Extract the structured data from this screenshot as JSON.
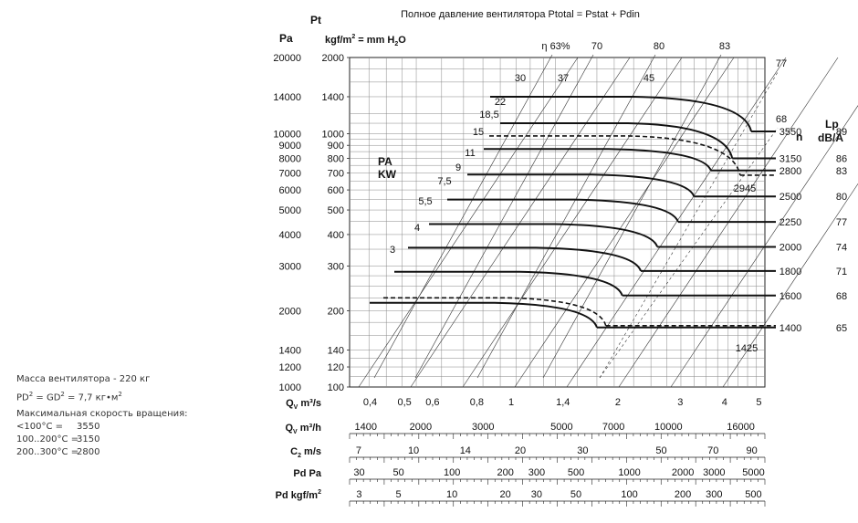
{
  "title": "Полное давление вентилятора Ptotal = Pstat + Pdin",
  "info": {
    "mass": "Масса вентилятора - 220 кг",
    "pd2_prefix": "PD",
    "pd2_mid": " = GD",
    "pd2_suffix": " = 7,7 кг•м",
    "sup": "2",
    "max_speed": "Максимальная скорость вращения:",
    "ranges": [
      {
        "t": "<100°C =",
        "v": "3550"
      },
      {
        "t": "100..200°C =",
        "v": "3150"
      },
      {
        "t": "200..300°C =",
        "v": "2800"
      }
    ]
  },
  "chart_data": {
    "type": "line",
    "axes_labels": {
      "pt": "Pt",
      "pa": "Pa",
      "kgf_prefix": "kgf/m",
      "kgf_mid": " = mm H",
      "kgf_suffix": "O",
      "sup2": "2",
      "sub2": "2",
      "n": "n",
      "lp": "Lp",
      "dba": "dB/A",
      "pa_kw_1": "PA",
      "pa_kw_2": "KW",
      "eff_prefix": "η 63%"
    },
    "pa_scale": {
      "ylim": [
        1000,
        20000
      ],
      "ticks": [
        1000,
        1200,
        1400,
        2000,
        3000,
        4000,
        5000,
        6000,
        7000,
        8000,
        9000,
        10000,
        14000,
        20000
      ],
      "labels": [
        "1000",
        "1200",
        "1400",
        "2000",
        "3000",
        "4000",
        "5000",
        "6000",
        "7000",
        "8000",
        "9000",
        "10000",
        "14000",
        "20000"
      ]
    },
    "kgf_scale": {
      "ticks": [
        100,
        120,
        140,
        200,
        300,
        400,
        500,
        600,
        700,
        800,
        900,
        1000,
        1400,
        2000
      ],
      "labels": [
        "100",
        "120",
        "140",
        "200",
        "300",
        "400",
        "500",
        "600",
        "700",
        "800",
        "900",
        "1000",
        "1400",
        "2000"
      ]
    },
    "bottom_axes": [
      {
        "label_main": "Q",
        "label_sub": "V",
        "label_rest": " m³/s",
        "min": 0.35,
        "max": 5.2,
        "ticks": [
          0.4,
          0.5,
          0.6,
          0.8,
          1,
          1.4,
          2,
          3,
          4,
          5
        ],
        "labels": [
          "0,4",
          "0,5",
          "0,6",
          "0,8",
          "1",
          "1,4",
          "2",
          "3",
          "4",
          "5"
        ]
      },
      {
        "label_main": "Q",
        "label_sub": "V",
        "label_rest": " m³/h",
        "min": 1260,
        "max": 18720,
        "ticks": [
          1400,
          2000,
          3000,
          5000,
          7000,
          10000,
          16000
        ],
        "labels": [
          "1400",
          "2000",
          "3000",
          "5000",
          "7000",
          "10000",
          "16000"
        ]
      },
      {
        "label_main": "C",
        "label_sub": "2",
        "label_rest": " m/s",
        "min": 6.6,
        "max": 98,
        "ticks": [
          7,
          10,
          14,
          20,
          30,
          50,
          70,
          90
        ],
        "labels": [
          "7",
          "10",
          "14",
          "20",
          "30",
          "50",
          "70",
          "90"
        ]
      },
      {
        "label_main": "Pd Pa",
        "label_sub": "",
        "label_rest": "",
        "min": 26.5,
        "max": 5800,
        "ticks": [
          30,
          50,
          100,
          200,
          300,
          500,
          1000,
          2000,
          3000,
          5000
        ],
        "labels": [
          "30",
          "50",
          "100",
          "200",
          "300",
          "500",
          "1000",
          "2000",
          "3000",
          "5000"
        ]
      },
      {
        "label_main": "Pd kgf/m",
        "label_sub": "",
        "label_rest": "",
        "label_sup": "2",
        "min": 2.65,
        "max": 580,
        "ticks": [
          3,
          5,
          10,
          20,
          30,
          50,
          100,
          200,
          300,
          500
        ],
        "labels": [
          "3",
          "5",
          "10",
          "20",
          "30",
          "50",
          "100",
          "200",
          "300",
          "500"
        ]
      }
    ],
    "speed_curves": [
      {
        "rpm": "3550",
        "lp": "89",
        "p_max": 14000,
        "q_end": 4.6,
        "power": "22",
        "dashed": false
      },
      {
        "rpm": "3150",
        "lp": "86",
        "p_max": 11000,
        "q_end": 4.1,
        "power": "18,5",
        "dashed": false
      },
      {
        "rpm": "2945",
        "lp": "",
        "p_max": 9800,
        "q_end": 4.3,
        "power": "15",
        "dashed": true
      },
      {
        "rpm": "2800",
        "lp": "83",
        "p_max": 8700,
        "q_end": 3.6,
        "power": "11",
        "dashed": false
      },
      {
        "rpm": "2500",
        "lp": "80",
        "p_max": 6900,
        "q_end": 3.25,
        "power": "9",
        "dashed": false
      },
      {
        "rpm": "2250",
        "lp": "77",
        "p_max": 5500,
        "q_end": 2.95,
        "power": "7,5",
        "dashed": false
      },
      {
        "rpm": "2000",
        "lp": "74",
        "p_max": 4400,
        "q_end": 2.6,
        "power": "5,5",
        "dashed": false
      },
      {
        "rpm": "1800",
        "lp": "71",
        "p_max": 3550,
        "q_end": 2.35,
        "power": "4",
        "dashed": false
      },
      {
        "rpm": "1600",
        "lp": "68",
        "p_max": 2850,
        "q_end": 2.1,
        "power": "3",
        "dashed": false
      },
      {
        "rpm": "1425",
        "lp": "",
        "p_max": 2250,
        "q_end": 1.9,
        "power": "",
        "dashed": true
      },
      {
        "rpm": "1400",
        "lp": "65",
        "p_max": 2150,
        "q_end": 1.8,
        "power": "",
        "dashed": false
      }
    ],
    "efficiency": [
      "η 63%",
      "70",
      "80",
      "83",
      "77",
      "68"
    ],
    "power_top": [
      "30",
      "37",
      "45"
    ]
  }
}
